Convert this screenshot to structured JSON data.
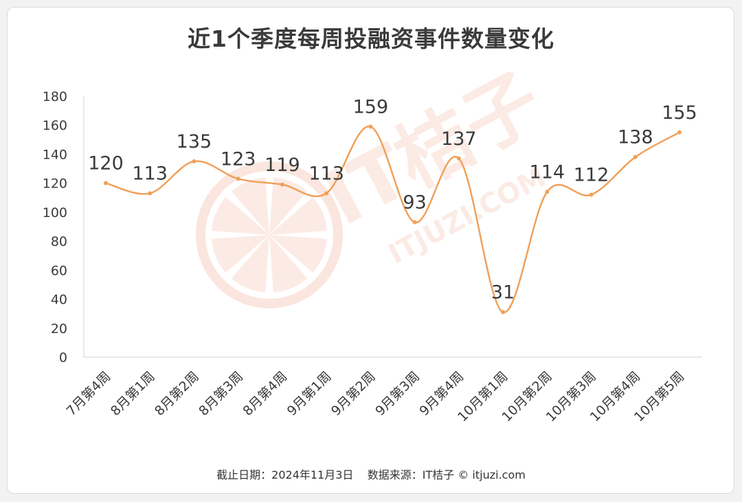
{
  "title": "近1个季度每周投融资事件数量变化",
  "footer": "截止日期：2024年11月3日    数据来源：IT桔子 © itjuzi.com",
  "watermark": {
    "logo_text": "IT桔子",
    "url_text": "ITJUZI.COM"
  },
  "colors": {
    "line": "#f0a05a",
    "marker": "#f0a05a",
    "axis": "#d9d9d9",
    "text": "#3a3a3a",
    "watermark": "#f5c7b5"
  },
  "chart_data": {
    "type": "line",
    "smooth": true,
    "title": "近1个季度每周投融资事件数量变化",
    "xlabel": "",
    "ylabel": "",
    "ylim": [
      0,
      180
    ],
    "yticks": [
      0,
      20,
      40,
      60,
      80,
      100,
      120,
      140,
      160,
      180
    ],
    "grid": false,
    "legend": "none",
    "categories": [
      "7月第4周",
      "8月第1周",
      "8月第2周",
      "8月第3周",
      "8月第4周",
      "9月第1周",
      "9月第2周",
      "9月第3周",
      "9月第4周",
      "10月第1周",
      "10月第2周",
      "10月第3周",
      "10月第4周",
      "10月第5周"
    ],
    "series": [
      {
        "values": [
          120,
          113,
          135,
          123,
          119,
          113,
          159,
          93,
          137,
          31,
          114,
          112,
          138,
          155
        ]
      }
    ],
    "data_labels": true
  }
}
